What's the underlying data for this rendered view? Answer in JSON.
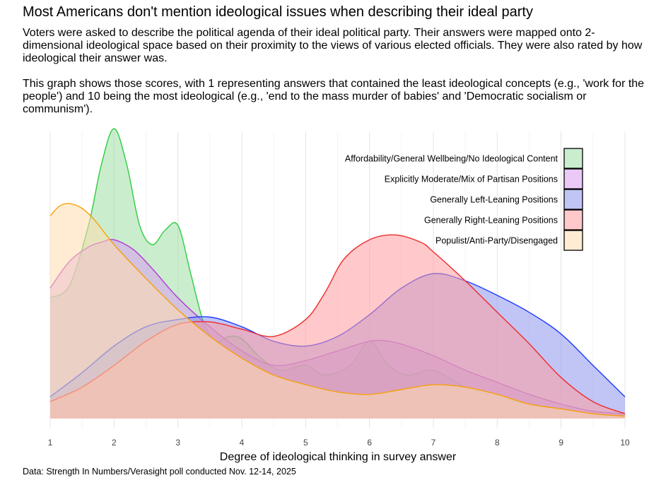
{
  "title": "Most Americans don't mention ideological issues when describing their ideal party",
  "subtitle": "Voters were asked to describe the political agenda of their ideal political party. Their answers were mapped onto 2-dimensional ideological space based on their proximity to the views of various elected officials. They were also rated by how ideological their answer was.\n\nThis graph shows those scores, with 1 representing answers that contained the least ideological concepts (e.g., 'work for the people') and 10 being the most ideological (e.g., 'end to the mass murder of babies' and 'Democratic socialism or communism').",
  "caption": "Data: Strength In Numbers/Verasight poll conducted Nov. 12-14, 2025",
  "chart_data": {
    "type": "area",
    "xlabel": "Degree of ideological thinking in survey answer",
    "ylabel": "",
    "xlim": [
      1,
      10
    ],
    "ylim": [
      0,
      1.2
    ],
    "x_ticks": [
      "1",
      "2",
      "3",
      "4",
      "5",
      "6",
      "7",
      "8",
      "9",
      "10"
    ],
    "grid": true,
    "legend_position": "top-right",
    "series": [
      {
        "name": "Affordability/General Wellbeing/No Ideological Content",
        "fill": "#9fdfa6",
        "stroke": "#2ecc40",
        "x": [
          1,
          1.3,
          1.6,
          1.8,
          2.0,
          2.2,
          2.4,
          2.6,
          2.8,
          3.0,
          3.2,
          3.4,
          3.6,
          3.8,
          4.0,
          4.3,
          4.6,
          5.0,
          5.3,
          5.7,
          6.0,
          6.3,
          6.6,
          7.0,
          7.5,
          8.0,
          8.5,
          9.0,
          9.5,
          10
        ],
        "y": [
          0.5,
          0.55,
          0.8,
          1.05,
          1.2,
          1.05,
          0.8,
          0.72,
          0.78,
          0.8,
          0.6,
          0.4,
          0.32,
          0.34,
          0.33,
          0.25,
          0.2,
          0.22,
          0.18,
          0.22,
          0.32,
          0.22,
          0.18,
          0.2,
          0.13,
          0.09,
          0.06,
          0.04,
          0.02,
          0.01
        ]
      },
      {
        "name": "Explicitly Moderate/Mix of Partisan Positions",
        "fill": "#d99cf0",
        "stroke": "#b03ad0",
        "x": [
          1,
          1.3,
          1.6,
          1.8,
          2.0,
          2.3,
          2.6,
          3.0,
          3.5,
          4.0,
          4.5,
          5.0,
          5.5,
          6.0,
          6.3,
          6.6,
          7.0,
          7.5,
          8.0,
          8.5,
          9.0,
          9.5,
          10
        ],
        "y": [
          0.54,
          0.65,
          0.71,
          0.73,
          0.74,
          0.7,
          0.62,
          0.5,
          0.38,
          0.28,
          0.22,
          0.24,
          0.28,
          0.32,
          0.32,
          0.3,
          0.26,
          0.2,
          0.15,
          0.1,
          0.06,
          0.03,
          0.02
        ]
      },
      {
        "name": "Generally Left-Leaning Positions",
        "fill": "#8c96ee",
        "stroke": "#1f3aff",
        "x": [
          1,
          1.5,
          2.0,
          2.5,
          3.0,
          3.5,
          4.0,
          4.5,
          5.0,
          5.5,
          6.0,
          6.5,
          7.0,
          7.5,
          8.0,
          8.5,
          9.0,
          9.5,
          10
        ],
        "y": [
          0.09,
          0.19,
          0.3,
          0.38,
          0.41,
          0.42,
          0.38,
          0.32,
          0.3,
          0.34,
          0.43,
          0.54,
          0.6,
          0.57,
          0.51,
          0.44,
          0.35,
          0.22,
          0.09
        ]
      },
      {
        "name": "Generally Right-Leaning Positions",
        "fill": "#ff9da0",
        "stroke": "#ee2b2b",
        "x": [
          1,
          1.5,
          2.0,
          2.5,
          3.0,
          3.5,
          4.0,
          4.5,
          5.0,
          5.3,
          5.6,
          6.0,
          6.4,
          6.8,
          7.0,
          7.5,
          8.0,
          8.5,
          9.0,
          9.5,
          10
        ],
        "y": [
          0.07,
          0.13,
          0.22,
          0.32,
          0.39,
          0.4,
          0.37,
          0.34,
          0.41,
          0.52,
          0.66,
          0.74,
          0.76,
          0.73,
          0.69,
          0.57,
          0.44,
          0.31,
          0.17,
          0.07,
          0.02
        ]
      },
      {
        "name": "Populist/Anti-Party/Disengaged",
        "fill": "#ffdcae",
        "stroke": "#f5a10a",
        "x": [
          1,
          1.15,
          1.3,
          1.5,
          1.7,
          2.0,
          2.5,
          3.0,
          3.5,
          4.0,
          4.5,
          5.0,
          5.5,
          6.0,
          6.5,
          7.0,
          7.5,
          8.0,
          8.5,
          9.0,
          9.5,
          10
        ],
        "y": [
          0.84,
          0.88,
          0.89,
          0.87,
          0.82,
          0.72,
          0.58,
          0.45,
          0.34,
          0.25,
          0.18,
          0.14,
          0.11,
          0.1,
          0.12,
          0.14,
          0.13,
          0.1,
          0.06,
          0.04,
          0.02,
          0.01
        ]
      }
    ]
  }
}
